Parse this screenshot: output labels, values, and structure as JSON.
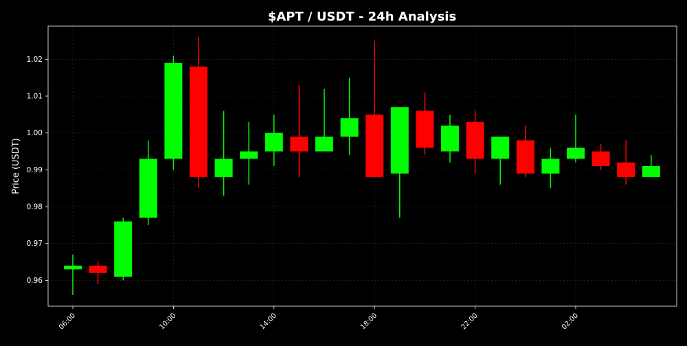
{
  "chart_data": {
    "type": "candlestick",
    "title": "$APT / USDT - 24h Analysis",
    "xlabel": "",
    "ylabel": "Price (USDT)",
    "x_tick_labels": [
      "06:00",
      "10:00",
      "14:00",
      "18:00",
      "22:00",
      "02:00"
    ],
    "y_ticks": [
      0.96,
      0.97,
      0.98,
      0.99,
      1.0,
      1.01,
      1.02
    ],
    "y_tick_labels": [
      "0.96",
      "0.97",
      "0.98",
      "0.99",
      "1.00",
      "1.01",
      "1.02"
    ],
    "ylim": [
      0.953,
      1.029
    ],
    "grid": true,
    "colors": {
      "background": "#000000",
      "up": "#00ff00",
      "down": "#ff0000",
      "text": "#ffffff",
      "axis": "#ffffff",
      "grid": "#333333"
    },
    "candles": [
      {
        "time": "06:00",
        "open": 0.963,
        "high": 0.967,
        "low": 0.956,
        "close": 0.964
      },
      {
        "time": "07:00",
        "open": 0.964,
        "high": 0.965,
        "low": 0.959,
        "close": 0.962
      },
      {
        "time": "08:00",
        "open": 0.961,
        "high": 0.977,
        "low": 0.96,
        "close": 0.976
      },
      {
        "time": "09:00",
        "open": 0.977,
        "high": 0.998,
        "low": 0.975,
        "close": 0.993
      },
      {
        "time": "10:00",
        "open": 0.993,
        "high": 1.021,
        "low": 0.99,
        "close": 1.019
      },
      {
        "time": "11:00",
        "open": 1.018,
        "high": 1.026,
        "low": 0.985,
        "close": 0.988
      },
      {
        "time": "12:00",
        "open": 0.988,
        "high": 1.006,
        "low": 0.983,
        "close": 0.993
      },
      {
        "time": "13:00",
        "open": 0.993,
        "high": 1.003,
        "low": 0.986,
        "close": 0.995
      },
      {
        "time": "14:00",
        "open": 0.995,
        "high": 1.005,
        "low": 0.991,
        "close": 1.0
      },
      {
        "time": "15:00",
        "open": 0.999,
        "high": 1.013,
        "low": 0.988,
        "close": 0.995
      },
      {
        "time": "16:00",
        "open": 0.995,
        "high": 1.012,
        "low": 0.995,
        "close": 0.999
      },
      {
        "time": "17:00",
        "open": 0.999,
        "high": 1.015,
        "low": 0.994,
        "close": 1.004
      },
      {
        "time": "18:00",
        "open": 1.005,
        "high": 1.025,
        "low": 0.988,
        "close": 0.988
      },
      {
        "time": "19:00",
        "open": 0.989,
        "high": 1.007,
        "low": 0.977,
        "close": 1.007
      },
      {
        "time": "20:00",
        "open": 1.006,
        "high": 1.011,
        "low": 0.994,
        "close": 0.996
      },
      {
        "time": "21:00",
        "open": 0.995,
        "high": 1.005,
        "low": 0.992,
        "close": 1.002
      },
      {
        "time": "22:00",
        "open": 1.003,
        "high": 1.006,
        "low": 0.989,
        "close": 0.993
      },
      {
        "time": "23:00",
        "open": 0.993,
        "high": 0.999,
        "low": 0.986,
        "close": 0.999
      },
      {
        "time": "00:00",
        "open": 0.998,
        "high": 1.002,
        "low": 0.988,
        "close": 0.989
      },
      {
        "time": "01:00",
        "open": 0.989,
        "high": 0.996,
        "low": 0.985,
        "close": 0.993
      },
      {
        "time": "02:00",
        "open": 0.993,
        "high": 1.005,
        "low": 0.992,
        "close": 0.996
      },
      {
        "time": "03:00",
        "open": 0.995,
        "high": 0.997,
        "low": 0.99,
        "close": 0.991
      },
      {
        "time": "04:00",
        "open": 0.992,
        "high": 0.998,
        "low": 0.986,
        "close": 0.988
      },
      {
        "time": "05:00",
        "open": 0.988,
        "high": 0.994,
        "low": 0.988,
        "close": 0.991
      }
    ]
  }
}
